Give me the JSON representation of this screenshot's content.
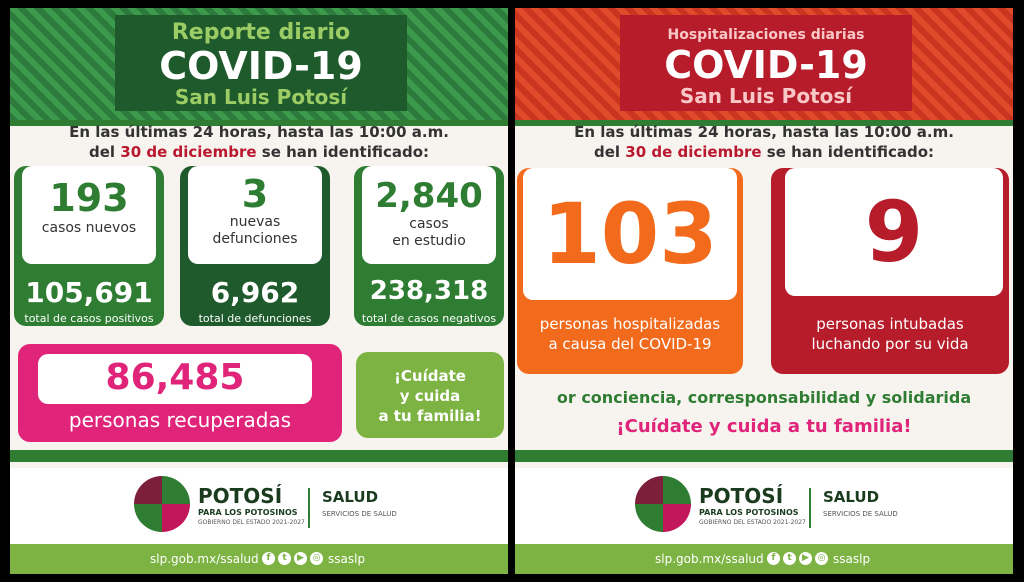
{
  "left": {
    "title_line1": "Reporte diario",
    "title_line2": "COVID-19",
    "title_line3": "San Luis Potosí",
    "intro_line1": "En las últimas 24 horas, hasta las 10:00 a.m.",
    "intro_del": "del",
    "intro_date": "30 de diciembre",
    "intro_rest": "se han identificado:",
    "new_cases": {
      "value": "193",
      "label": "casos nuevos",
      "total": "105,691",
      "total_label": "total de casos positivos"
    },
    "deaths": {
      "value": "3",
      "label1": "nuevas",
      "label2": "defunciones",
      "total": "6,962",
      "total_label": "total de defunciones"
    },
    "study": {
      "value": "2,840",
      "label1": "casos",
      "label2": "en estudio",
      "total": "238,318",
      "total_label": "total de casos negativos"
    },
    "recovered": {
      "value": "86,485",
      "label": "personas recuperadas"
    },
    "care": {
      "line1": "¡Cuídate",
      "line2": "y cuida",
      "line3": "a tu familia!"
    }
  },
  "right": {
    "title_line1": "Hospitalizaciones diarias",
    "title_line2": "COVID-19",
    "title_line3": "San Luis Potosí",
    "intro_line1": "En las últimas 24 horas, hasta las 10:00 a.m.",
    "intro_del": "del",
    "intro_date": "30 de diciembre",
    "intro_rest": "se han identificado:",
    "hospitalized": {
      "value": "103",
      "label1": "personas hospitalizadas",
      "label2": "a causa del COVID-19"
    },
    "intubated": {
      "value": "9",
      "label1": "personas intubadas",
      "label2": "luchando por su vida"
    },
    "slogan1": "or conciencia, corresponsabilidad y solidarida",
    "slogan2": "¡Cuídate y cuida a tu familia!"
  },
  "footer": {
    "potosi": "POTOSÍ",
    "potosi_sub": "PARA LOS POTOSINOS",
    "potosi_gov": "GOBIERNO DEL ESTADO 2021-2027",
    "salud": "SALUD",
    "salud_sub": "SERVICIOS DE SALUD",
    "website": "slp.gob.mx/ssalud",
    "handle": "ssaslp",
    "social_icons": [
      "facebook-icon",
      "twitter-icon",
      "youtube-icon",
      "instagram-icon"
    ]
  },
  "colors": {
    "green_dark": "#1e5a2b",
    "green_mid": "#2e7d32",
    "green_light": "#7cb342",
    "pink": "#e0247a",
    "red": "#b71c2a",
    "orange": "#f26a1b"
  }
}
